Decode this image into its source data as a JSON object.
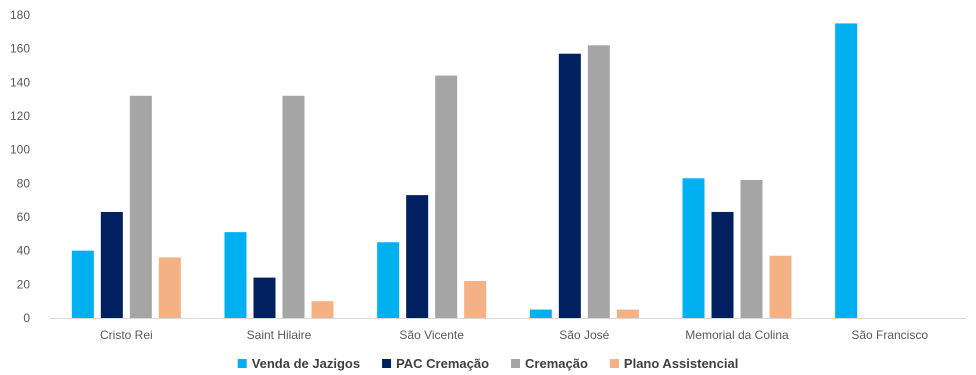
{
  "chart_data": {
    "type": "bar",
    "title": "",
    "xlabel": "",
    "ylabel": "",
    "ylim": [
      0,
      180
    ],
    "yticks": [
      0,
      20,
      40,
      60,
      80,
      100,
      120,
      140,
      160,
      180
    ],
    "grid": false,
    "legend_position": "bottom",
    "categories": [
      "Cristo Rei",
      "Saint Hilaire",
      "São Vicente",
      "São José",
      "Memorial da Colina",
      "São Francisco"
    ],
    "series": [
      {
        "name": "Venda de Jazigos",
        "color": "#00b0f0",
        "values": [
          40,
          51,
          45,
          5,
          83,
          175
        ]
      },
      {
        "name": "PAC Cremação",
        "color": "#002060",
        "values": [
          63,
          24,
          73,
          157,
          63,
          0
        ]
      },
      {
        "name": "Cremação",
        "color": "#a5a5a5",
        "values": [
          132,
          132,
          144,
          162,
          82,
          0
        ]
      },
      {
        "name": "Plano Assistencial",
        "color": "#f4b183",
        "values": [
          36,
          10,
          22,
          5,
          37,
          0
        ]
      }
    ]
  }
}
